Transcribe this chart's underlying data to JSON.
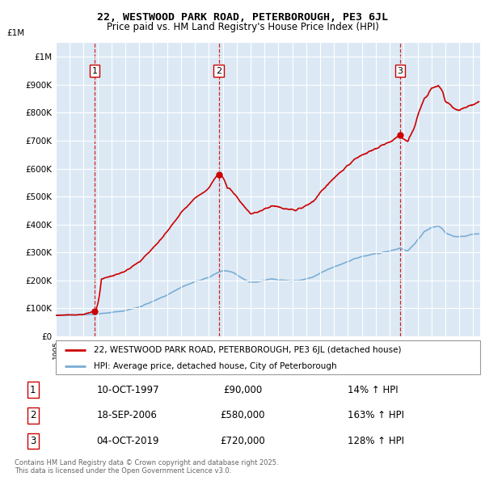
{
  "title": "22, WESTWOOD PARK ROAD, PETERBOROUGH, PE3 6JL",
  "subtitle": "Price paid vs. HM Land Registry's House Price Index (HPI)",
  "legend_line1": "22, WESTWOOD PARK ROAD, PETERBOROUGH, PE3 6JL (detached house)",
  "legend_line2": "HPI: Average price, detached house, City of Peterborough",
  "footnote": "Contains HM Land Registry data © Crown copyright and database right 2025.\nThis data is licensed under the Open Government Licence v3.0.",
  "transactions": [
    {
      "num": 1,
      "date": "10-OCT-1997",
      "price": 90000,
      "pct": "14%",
      "year": 1997.78
    },
    {
      "num": 2,
      "date": "18-SEP-2006",
      "price": 580000,
      "pct": "163%",
      "year": 2006.71
    },
    {
      "num": 3,
      "date": "04-OCT-2019",
      "price": 720000,
      "pct": "128%",
      "year": 2019.75
    }
  ],
  "background_color": "#dce9f5",
  "red_color": "#cc0000",
  "blue_color": "#7aadd4",
  "ylim": [
    0,
    1000000
  ],
  "xlim_start": 1995,
  "xlim_end": 2025.5
}
